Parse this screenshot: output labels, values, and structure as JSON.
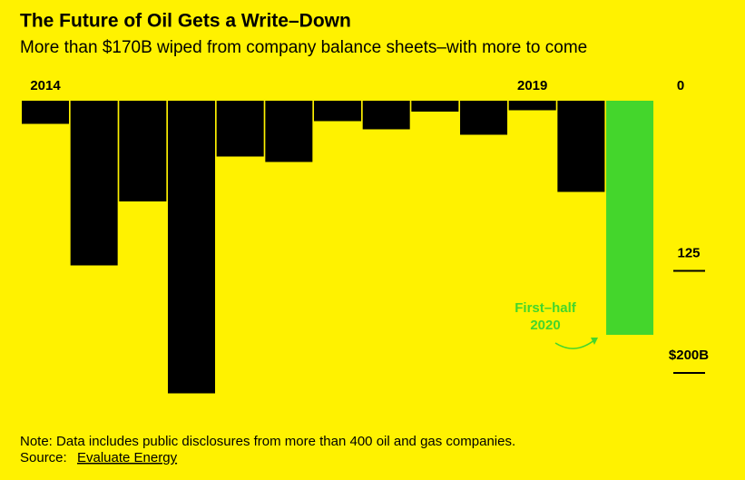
{
  "chart_data": {
    "type": "bar",
    "title": "The Future of Oil Gets a Write–Down",
    "subtitle": "More than $170B wiped from company balance sheets–with more to come",
    "categories": [
      "2014",
      null,
      null,
      null,
      null,
      null,
      null,
      null,
      null,
      null,
      "2019",
      null,
      null
    ],
    "values": [
      17,
      121,
      74,
      215,
      41,
      45,
      15,
      21,
      8,
      25,
      7,
      67,
      172
    ],
    "colors": [
      "#000000",
      "#000000",
      "#000000",
      "#000000",
      "#000000",
      "#000000",
      "#000000",
      "#000000",
      "#000000",
      "#000000",
      "#000000",
      "#000000",
      "#44d62c"
    ],
    "ylim": [
      0,
      220
    ],
    "yticks": [
      0,
      125,
      {
        "value": 200,
        "label": "$200B"
      }
    ],
    "annotation": [
      "First–half",
      "2020"
    ],
    "annotation_color": "#44d62c",
    "note": "Note: Data includes public disclosures from more than 400 oil and gas companies.",
    "source": {
      "label": "Source:",
      "name": "Evaluate Energy"
    }
  }
}
